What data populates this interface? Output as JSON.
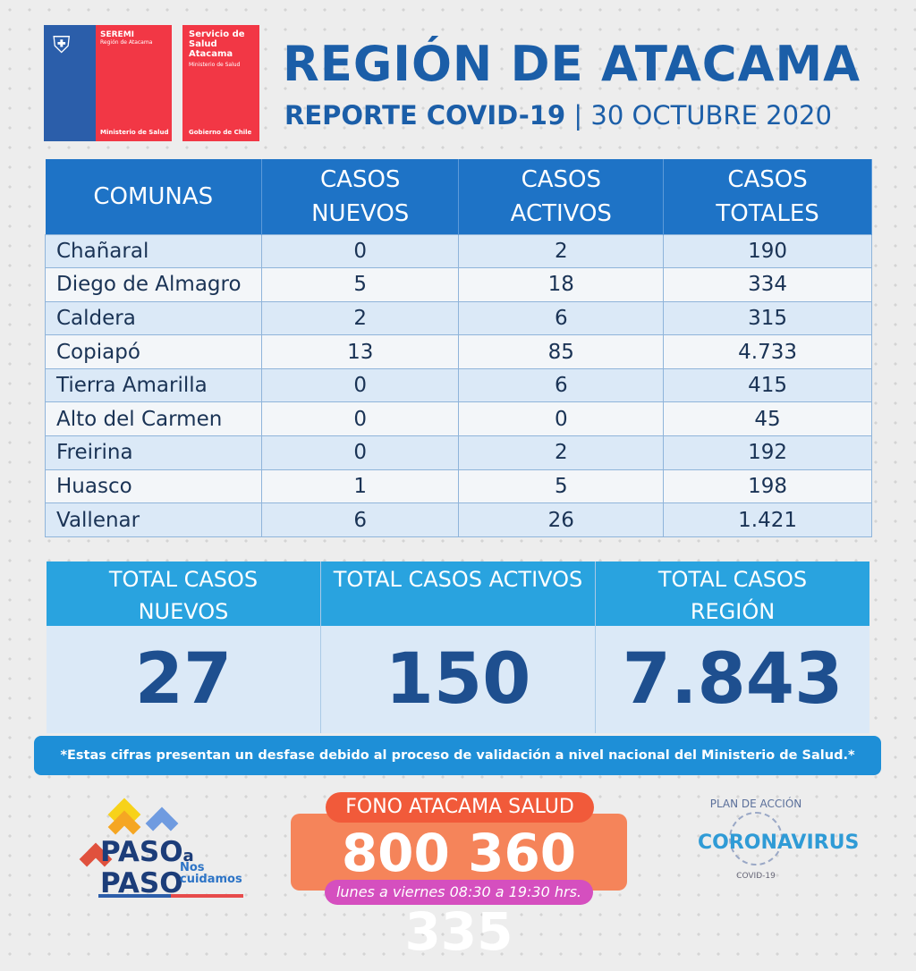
{
  "logos": {
    "seremi": {
      "title": "SEREMI",
      "subtitle": "Región de Atacama",
      "footer": "Ministerio de Salud"
    },
    "servicio": {
      "title": "Servicio de Salud Atacama",
      "subtitle": "Ministerio de Salud",
      "footer": "Gobierno de Chile"
    }
  },
  "header": {
    "title": "REGIÓN DE ATACAMA",
    "report": "REPORTE COVID-19",
    "separator": "|",
    "date": "30 OCTUBRE 2020"
  },
  "table": {
    "columns": [
      "COMUNAS",
      "CASOS NUEVOS",
      "CASOS ACTIVOS",
      "CASOS TOTALES"
    ],
    "rows": [
      [
        "Chañaral",
        "0",
        "2",
        "190"
      ],
      [
        "Diego de Almagro",
        "5",
        "18",
        "334"
      ],
      [
        "Caldera",
        "2",
        "6",
        "315"
      ],
      [
        "Copiapó",
        "13",
        "85",
        "4.733"
      ],
      [
        "Tierra Amarilla",
        "0",
        "6",
        "415"
      ],
      [
        "Alto del Carmen",
        "0",
        "0",
        "45"
      ],
      [
        "Freirina",
        "0",
        "2",
        "192"
      ],
      [
        "Huasco",
        "1",
        "5",
        "198"
      ],
      [
        "Vallenar",
        "6",
        "26",
        "1.421"
      ]
    ]
  },
  "totals": [
    {
      "label": "TOTAL CASOS NUEVOS",
      "value": "27"
    },
    {
      "label": "TOTAL CASOS ACTIVOS",
      "value": "150"
    },
    {
      "label": "TOTAL CASOS REGIÓN",
      "value": "7.843"
    }
  ],
  "note": "*Estas cifras presentan un desfase debido al proceso de validación a nivel nacional del Ministerio de Salud.*",
  "paso": {
    "line1": "PASO",
    "a": "a",
    "line2": "PASO",
    "nos": "Nos",
    "cuidamos": "cuidamos"
  },
  "fono": {
    "label": "FONO ATACAMA SALUD",
    "number": "800 360 335",
    "hours": "lunes a viernes 08:30 a 19:30 hrs."
  },
  "plan": {
    "top": "PLAN DE ACCIÓN",
    "main": "CORONAVIRUS",
    "sub": "COVID-19"
  },
  "colors": {
    "blue": "#1b5ea8",
    "header": "#1e73c6",
    "totals_header": "#29a3df",
    "red": "#f23745",
    "orange": "#f5845a",
    "magenta": "#d54fbf"
  }
}
